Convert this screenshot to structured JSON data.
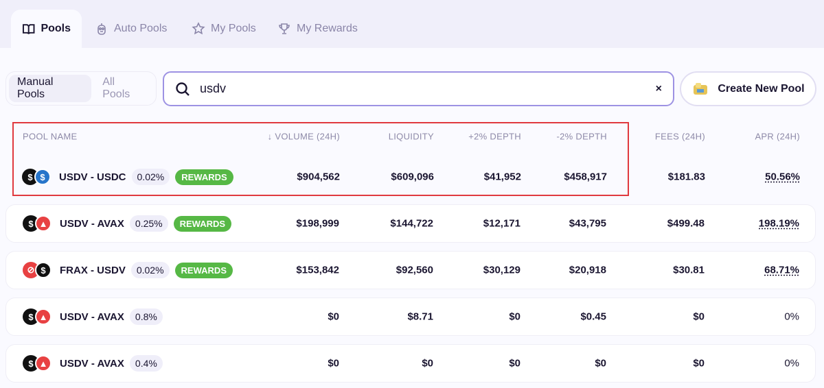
{
  "tabs": [
    {
      "label": "Pools",
      "icon": "book-icon"
    },
    {
      "label": "Auto Pools",
      "icon": "robot-icon"
    },
    {
      "label": "My Pools",
      "icon": "star-icon"
    },
    {
      "label": "My Rewards",
      "icon": "trophy-icon"
    }
  ],
  "filter": {
    "manual": "Manual Pools",
    "all": "All Pools"
  },
  "search": {
    "value": "usdv",
    "clear": "×"
  },
  "create_label": "Create New Pool",
  "columns": [
    "POOL NAME",
    "↓ VOLUME (24H)",
    "LIQUIDITY",
    "+2% DEPTH",
    "-2% DEPTH",
    "FEES (24H)",
    "APR (24H)"
  ],
  "rows": [
    {
      "name": "USDV - USDC",
      "fee": "0.02%",
      "rewards": "REWARDS",
      "volume": "$904,562",
      "liquidity": "$609,096",
      "plus2": "$41,952",
      "minus2": "$458,917",
      "fees": "$181.83",
      "apr": "50.56%",
      "t1": "usdv",
      "t2": "usdc"
    },
    {
      "name": "USDV - AVAX",
      "fee": "0.25%",
      "rewards": "REWARDS",
      "volume": "$198,999",
      "liquidity": "$144,722",
      "plus2": "$12,171",
      "minus2": "$43,795",
      "fees": "$499.48",
      "apr": "198.19%",
      "t1": "usdv",
      "t2": "avax"
    },
    {
      "name": "FRAX - USDV",
      "fee": "0.02%",
      "rewards": "REWARDS",
      "volume": "$153,842",
      "liquidity": "$92,560",
      "plus2": "$30,129",
      "minus2": "$20,918",
      "fees": "$30.81",
      "apr": "68.71%",
      "t1": "frax",
      "t2": "usdv"
    },
    {
      "name": "USDV - AVAX",
      "fee": "0.8%",
      "rewards": "",
      "volume": "$0",
      "liquidity": "$8.71",
      "plus2": "$0",
      "minus2": "$0.45",
      "fees": "$0",
      "apr": "0%",
      "t1": "usdv",
      "t2": "avax"
    },
    {
      "name": "USDV - AVAX",
      "fee": "0.4%",
      "rewards": "",
      "volume": "$0",
      "liquidity": "$0",
      "plus2": "$0",
      "minus2": "$0",
      "fees": "$0",
      "apr": "0%",
      "t1": "usdv",
      "t2": "avax"
    }
  ],
  "colors": {
    "accent": "#9d92e3",
    "rewards": "#56b845",
    "highlight": "#e0393e"
  }
}
